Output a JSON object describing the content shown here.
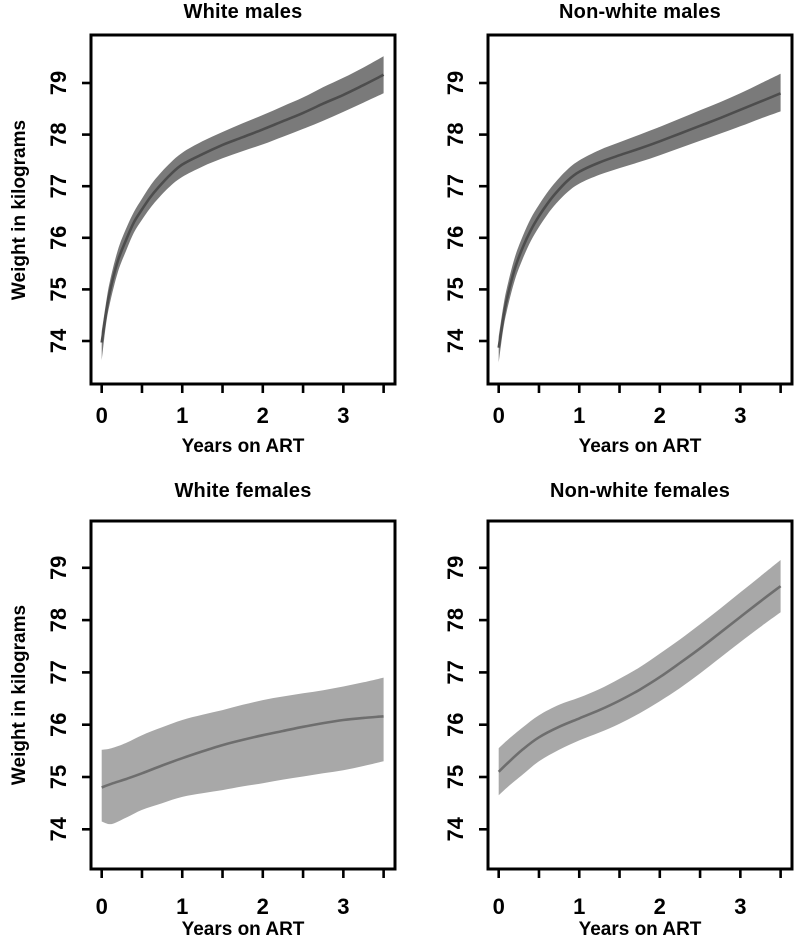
{
  "figure": {
    "background": "#ffffff",
    "axes": {
      "xlabel": "Years on ART",
      "ylabel": "Weight in kilograms",
      "yticks": [
        74,
        75,
        76,
        77,
        78,
        79
      ],
      "xticks_labeled": [
        0,
        1,
        2,
        3
      ],
      "xticks_all": [
        0,
        0.5,
        1,
        1.5,
        2,
        2.5,
        3,
        3.5
      ],
      "axis_color": "#000000"
    }
  },
  "chart_data": [
    {
      "type": "area",
      "title": "White males",
      "xlabel": "Years on ART",
      "ylabel": "Weight in kilograms",
      "xlim": [
        -0.14,
        3.64
      ],
      "ylim": [
        73.2,
        79.9
      ],
      "band_color": "#7a7a7a",
      "line_color": "#4d4d4d",
      "x": [
        0,
        0.05,
        0.1,
        0.2,
        0.3,
        0.4,
        0.5,
        0.6,
        0.7,
        0.85,
        1.0,
        1.25,
        1.5,
        1.75,
        2.0,
        2.25,
        2.5,
        2.75,
        3.0,
        3.25,
        3.5
      ],
      "series": [
        {
          "name": "mean",
          "values": [
            73.97,
            74.5,
            74.95,
            75.55,
            75.95,
            76.3,
            76.55,
            76.78,
            76.97,
            77.22,
            77.42,
            77.62,
            77.8,
            77.95,
            78.1,
            78.26,
            78.42,
            78.6,
            78.77,
            78.96,
            79.16
          ]
        },
        {
          "name": "ci_lower",
          "values": [
            73.62,
            74.28,
            74.72,
            75.33,
            75.74,
            76.1,
            76.35,
            76.57,
            76.76,
            77.0,
            77.18,
            77.38,
            77.54,
            77.68,
            77.81,
            77.96,
            78.11,
            78.27,
            78.44,
            78.62,
            78.8
          ]
        },
        {
          "name": "ci_upper",
          "values": [
            74.18,
            74.7,
            75.15,
            75.76,
            76.17,
            76.5,
            76.76,
            77.0,
            77.2,
            77.45,
            77.65,
            77.87,
            78.05,
            78.22,
            78.38,
            78.55,
            78.72,
            78.92,
            79.1,
            79.3,
            79.52
          ]
        }
      ]
    },
    {
      "type": "area",
      "title": "Non-white males",
      "xlabel": "Years on ART",
      "ylabel": "Weight in kilograms",
      "xlim": [
        -0.14,
        3.64
      ],
      "ylim": [
        73.2,
        79.9
      ],
      "band_color": "#7a7a7a",
      "line_color": "#4d4d4d",
      "x": [
        0,
        0.05,
        0.1,
        0.2,
        0.3,
        0.4,
        0.5,
        0.6,
        0.7,
        0.85,
        1.0,
        1.25,
        1.5,
        1.75,
        2.0,
        2.25,
        2.5,
        2.75,
        3.0,
        3.25,
        3.5
      ],
      "series": [
        {
          "name": "mean",
          "values": [
            73.87,
            74.38,
            74.8,
            75.4,
            75.82,
            76.15,
            76.42,
            76.65,
            76.85,
            77.1,
            77.28,
            77.46,
            77.6,
            77.73,
            77.87,
            78.02,
            78.17,
            78.32,
            78.48,
            78.64,
            78.8
          ]
        },
        {
          "name": "ci_lower",
          "values": [
            73.58,
            74.16,
            74.58,
            75.18,
            75.6,
            75.94,
            76.21,
            76.44,
            76.64,
            76.88,
            77.05,
            77.22,
            77.35,
            77.47,
            77.6,
            77.74,
            77.88,
            78.02,
            78.16,
            78.31,
            78.45
          ]
        },
        {
          "name": "ci_upper",
          "values": [
            74.08,
            74.6,
            75.02,
            75.62,
            76.04,
            76.38,
            76.64,
            76.87,
            77.07,
            77.32,
            77.5,
            77.7,
            77.85,
            78.0,
            78.15,
            78.31,
            78.47,
            78.63,
            78.8,
            78.99,
            79.18
          ]
        }
      ]
    },
    {
      "type": "area",
      "title": "White females",
      "xlabel": "Years on ART",
      "ylabel": "Weight in kilograms",
      "xlim": [
        -0.14,
        3.64
      ],
      "ylim": [
        73.2,
        79.9
      ],
      "band_color": "#a8a8a8",
      "line_color": "#6e6e6e",
      "x": [
        0,
        0.12,
        0.3,
        0.5,
        0.75,
        1.0,
        1.25,
        1.5,
        1.75,
        2.0,
        2.25,
        2.5,
        2.75,
        3.0,
        3.25,
        3.5
      ],
      "series": [
        {
          "name": "mean",
          "values": [
            74.8,
            74.87,
            74.96,
            75.07,
            75.22,
            75.36,
            75.49,
            75.61,
            75.71,
            75.8,
            75.88,
            75.96,
            76.03,
            76.09,
            76.13,
            76.16
          ]
        },
        {
          "name": "ci_lower",
          "values": [
            74.15,
            74.1,
            74.22,
            74.37,
            74.5,
            74.62,
            74.69,
            74.75,
            74.82,
            74.88,
            74.95,
            75.01,
            75.07,
            75.13,
            75.21,
            75.3
          ]
        },
        {
          "name": "ci_upper",
          "values": [
            75.52,
            75.55,
            75.65,
            75.8,
            75.95,
            76.09,
            76.19,
            76.28,
            76.38,
            76.47,
            76.54,
            76.6,
            76.66,
            76.73,
            76.81,
            76.9
          ]
        }
      ]
    },
    {
      "type": "area",
      "title": "Non-white females",
      "xlabel": "Years on ART",
      "ylabel": "Weight in kilograms",
      "xlim": [
        -0.14,
        3.64
      ],
      "ylim": [
        73.2,
        79.9
      ],
      "band_color": "#a8a8a8",
      "line_color": "#6e6e6e",
      "x": [
        0,
        0.12,
        0.3,
        0.5,
        0.75,
        1.0,
        1.25,
        1.5,
        1.75,
        2.0,
        2.25,
        2.5,
        2.75,
        3.0,
        3.25,
        3.5
      ],
      "series": [
        {
          "name": "mean",
          "values": [
            75.1,
            75.28,
            75.53,
            75.76,
            75.96,
            76.12,
            76.28,
            76.46,
            76.67,
            76.91,
            77.18,
            77.46,
            77.76,
            78.06,
            78.36,
            78.65
          ]
        },
        {
          "name": "ci_lower",
          "values": [
            74.65,
            74.82,
            75.05,
            75.3,
            75.52,
            75.7,
            75.85,
            76.02,
            76.22,
            76.45,
            76.7,
            76.98,
            77.28,
            77.58,
            77.87,
            78.15
          ]
        },
        {
          "name": "ci_upper",
          "values": [
            75.55,
            75.72,
            75.95,
            76.18,
            76.38,
            76.52,
            76.68,
            76.88,
            77.1,
            77.36,
            77.63,
            77.92,
            78.22,
            78.53,
            78.84,
            79.15
          ]
        }
      ]
    }
  ]
}
